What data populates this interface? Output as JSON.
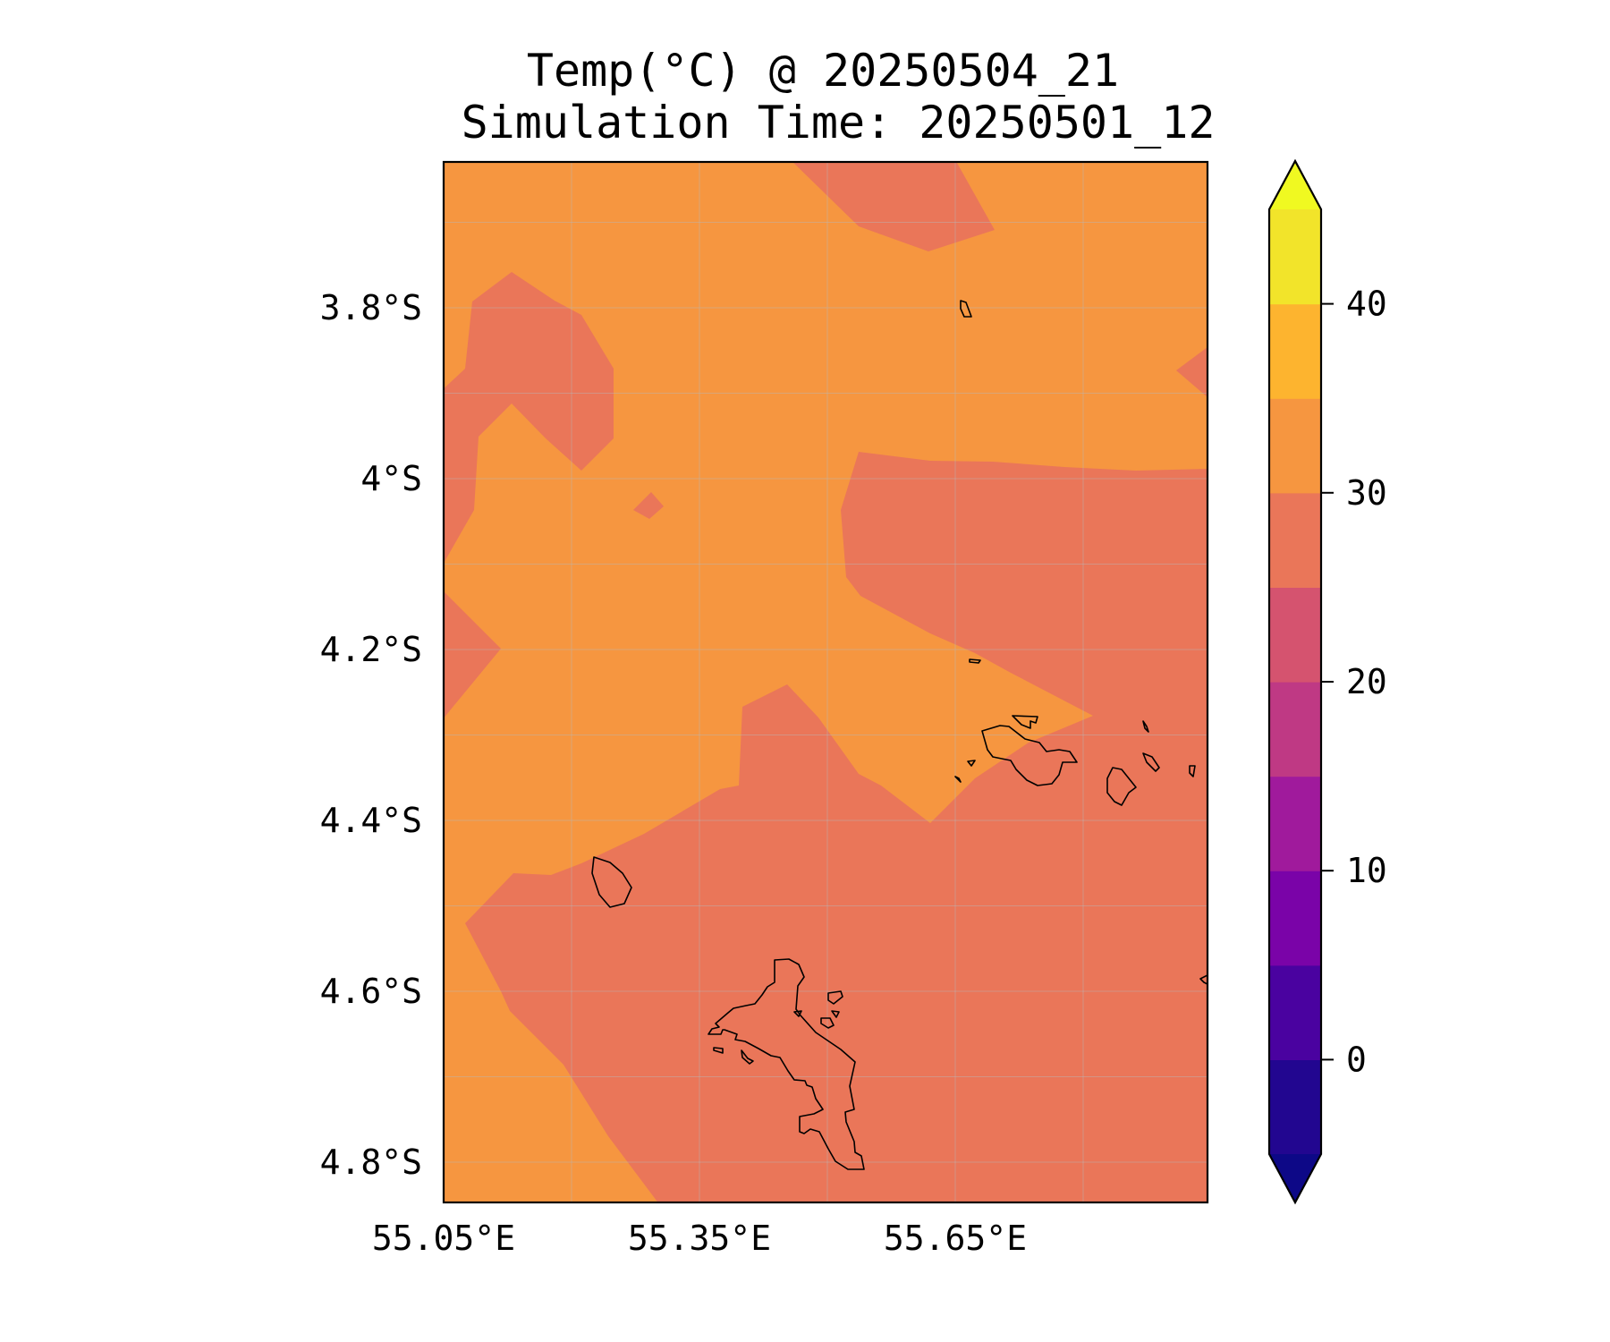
{
  "title": {
    "line1": "Temp(°C) @ 20250504_21",
    "line2": "Simulation Time: 20250501_12"
  },
  "map": {
    "type": "filled-contour-map",
    "region": "Seychelles (Mahé, Praslin, La Digue)",
    "lon_range": [
      55.05,
      55.94
    ],
    "lat_range": [
      -4.85,
      -3.63
    ],
    "lon_ticks": [
      {
        "value": 55.05,
        "label": "55.05°E"
      },
      {
        "value": 55.35,
        "label": "55.35°E"
      },
      {
        "value": 55.65,
        "label": "55.65°E"
      }
    ],
    "lat_ticks": [
      {
        "value": -3.8,
        "label": "3.8°S"
      },
      {
        "value": -4.0,
        "label": "4°S"
      },
      {
        "value": -4.2,
        "label": "4.2°S"
      },
      {
        "value": -4.4,
        "label": "4.4°S"
      },
      {
        "value": -4.6,
        "label": "4.6°S"
      },
      {
        "value": -4.8,
        "label": "4.8°S"
      }
    ],
    "grid": true,
    "fill_colors": {
      "temp_25_30": "#ea7659",
      "temp_30_35": "#f69640"
    }
  },
  "colorbar": {
    "range": [
      -5,
      45
    ],
    "extend": "both",
    "levels": [
      {
        "from": -5,
        "to": 0,
        "color": "#220690"
      },
      {
        "from": 0,
        "to": 5,
        "color": "#4a02a0"
      },
      {
        "from": 5,
        "to": 10,
        "color": "#7a03a8"
      },
      {
        "from": 10,
        "to": 15,
        "color": "#a01a9c"
      },
      {
        "from": 15,
        "to": 20,
        "color": "#bf3984"
      },
      {
        "from": 20,
        "to": 25,
        "color": "#d5536f"
      },
      {
        "from": 25,
        "to": 30,
        "color": "#ea7659"
      },
      {
        "from": 30,
        "to": 35,
        "color": "#f69640"
      },
      {
        "from": 35,
        "to": 40,
        "color": "#fdb42f"
      },
      {
        "from": 40,
        "to": 45,
        "color": "#f2e42a"
      }
    ],
    "under_color": "#0d0887",
    "over_color": "#f0f921",
    "ticks": [
      {
        "value": 0,
        "label": "0"
      },
      {
        "value": 10,
        "label": "10"
      },
      {
        "value": 20,
        "label": "20"
      },
      {
        "value": 30,
        "label": "30"
      },
      {
        "value": 40,
        "label": "40"
      }
    ]
  }
}
